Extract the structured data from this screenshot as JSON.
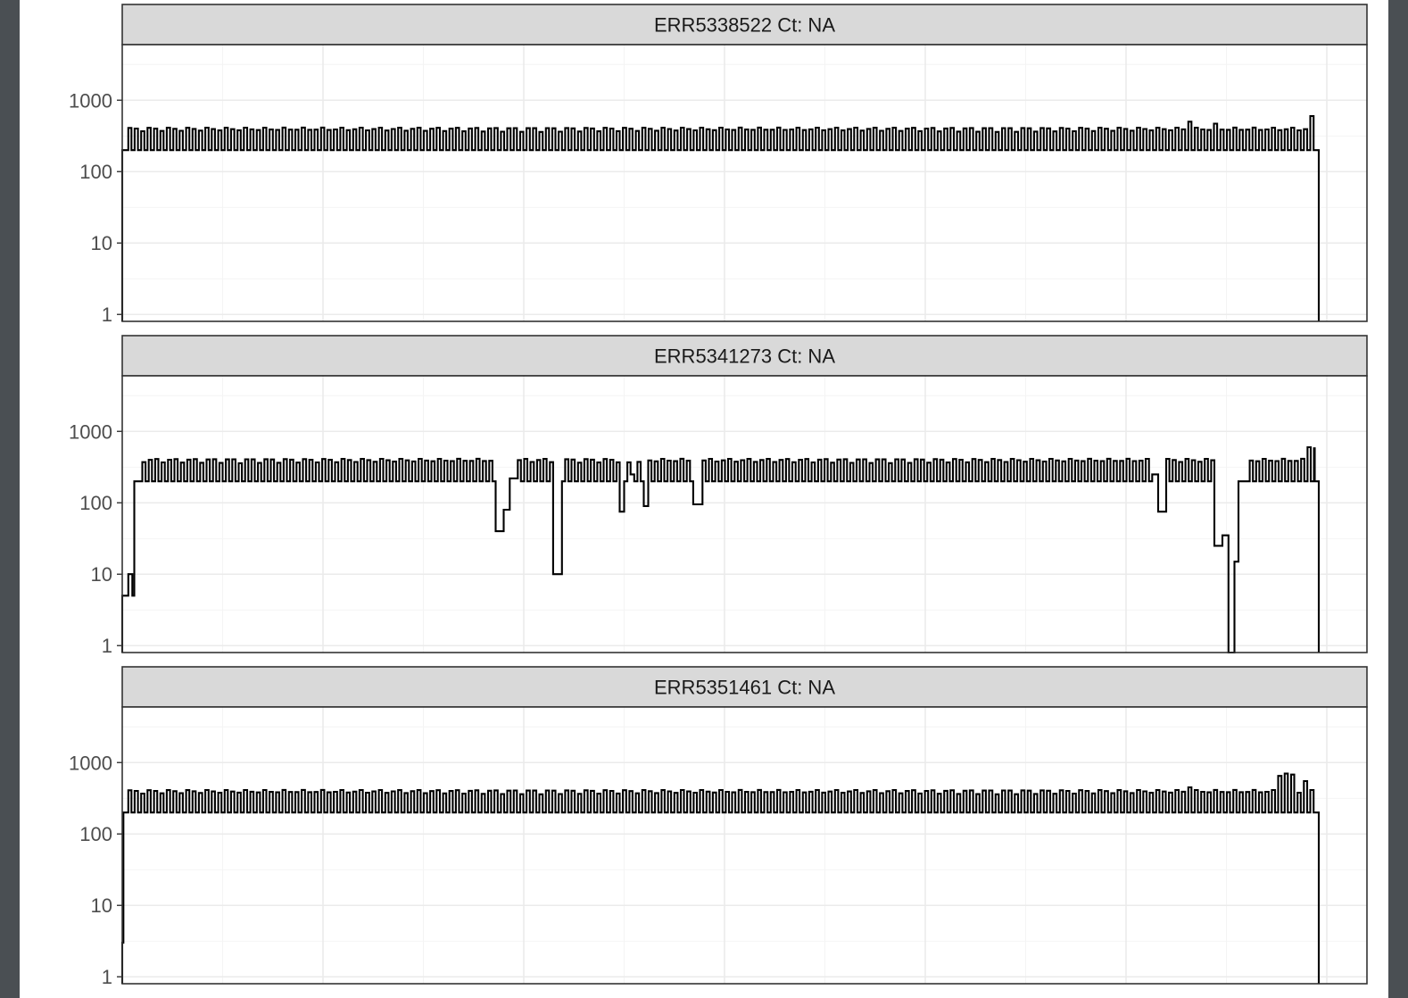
{
  "chart_data": [
    {
      "type": "line",
      "title": "ERR5338522 Ct: NA",
      "yscale": "log10",
      "ylim": [
        0.8,
        6000
      ],
      "yticks": [
        1,
        10,
        100,
        1000
      ],
      "ytick_labels": [
        "1",
        "10",
        "100",
        "1000"
      ],
      "xlim": [
        0,
        31000
      ],
      "x_major_breaks": [
        5000,
        10000,
        15000,
        20000,
        25000,
        30000
      ],
      "baseline_low": 200,
      "baseline_high": 390,
      "start": 0,
      "end": 29800,
      "ramp": [
        [
          0,
          0.8
        ],
        [
          0,
          200
        ],
        [
          150,
          200
        ]
      ],
      "dips": [],
      "peaks": [
        [
          26600,
          500
        ],
        [
          27200,
          470
        ],
        [
          29520,
          600
        ],
        [
          29680,
          580
        ]
      ]
    },
    {
      "type": "line",
      "title": "ERR5341273 Ct: NA",
      "yscale": "log10",
      "ylim": [
        0.8,
        6000
      ],
      "yticks": [
        1,
        10,
        100,
        1000
      ],
      "ytick_labels": [
        "1",
        "10",
        "100",
        "1000"
      ],
      "xlim": [
        0,
        31000
      ],
      "x_major_breaks": [
        5000,
        10000,
        15000,
        20000,
        25000,
        30000
      ],
      "baseline_low": 200,
      "baseline_high": 390,
      "start": 0,
      "end": 29800,
      "ramp": [
        [
          0,
          0.8
        ],
        [
          0,
          5
        ],
        [
          150,
          5
        ],
        [
          150,
          10
        ],
        [
          250,
          10
        ],
        [
          250,
          5
        ],
        [
          300,
          5
        ],
        [
          300,
          200
        ],
        [
          500,
          200
        ]
      ],
      "dips": [
        [
          9300,
          9500,
          40
        ],
        [
          9500,
          9650,
          80
        ],
        [
          9650,
          9850,
          220
        ],
        [
          10700,
          10950,
          10
        ],
        [
          12350,
          12500,
          75
        ],
        [
          12650,
          12750,
          250
        ],
        [
          12950,
          13100,
          90
        ],
        [
          14200,
          14450,
          95
        ],
        [
          25600,
          25800,
          250
        ],
        [
          25800,
          26000,
          75
        ],
        [
          27150,
          27400,
          25
        ],
        [
          27400,
          27550,
          35
        ],
        [
          27550,
          27700,
          0.8
        ],
        [
          27700,
          27800,
          15
        ],
        [
          27800,
          28000,
          200
        ]
      ],
      "peaks": [
        [
          29520,
          600
        ],
        [
          29680,
          580
        ]
      ]
    },
    {
      "type": "line",
      "title": "ERR5351461 Ct: NA",
      "yscale": "log10",
      "ylim": [
        0.8,
        6000
      ],
      "yticks": [
        1,
        10,
        100,
        1000
      ],
      "ytick_labels": [
        "1",
        "10",
        "100",
        "1000"
      ],
      "xlim": [
        0,
        31000
      ],
      "x_major_breaks": [
        5000,
        10000,
        15000,
        20000,
        25000,
        30000
      ],
      "baseline_low": 200,
      "baseline_high": 390,
      "start": 0,
      "end": 29800,
      "ramp": [
        [
          0,
          0.8
        ],
        [
          0,
          3
        ],
        [
          30,
          3
        ],
        [
          30,
          200
        ],
        [
          150,
          200
        ]
      ],
      "dips": [],
      "peaks": [
        [
          26600,
          450
        ],
        [
          28550,
          500
        ],
        [
          28750,
          650
        ],
        [
          28950,
          700
        ],
        [
          29150,
          680
        ],
        [
          29350,
          520
        ],
        [
          29500,
          550
        ]
      ]
    }
  ]
}
